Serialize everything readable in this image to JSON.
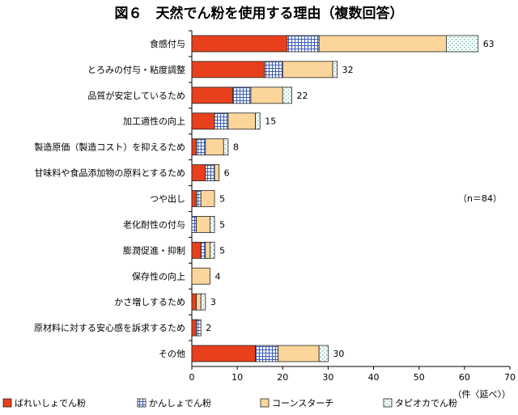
{
  "chart_data": {
    "type": "bar",
    "orientation": "horizontal",
    "stacked": true,
    "title": "図６　天然でん粉を使用する理由（複数回答）",
    "note": "（n＝84）",
    "xunit": "（件〈延べ〉）",
    "xlim": [
      0,
      70
    ],
    "xticks": [
      0,
      10,
      20,
      30,
      40,
      50,
      60,
      70
    ],
    "grid": false,
    "legend_position": "bottom",
    "categories": [
      "食感付与",
      "とろみの付与・粘度調整",
      "品質が安定しているため",
      "加工適性の向上",
      "製造原価（製造コスト）を抑えるため",
      "甘味料や食品添加物の原料とするため",
      "つや出し",
      "老化耐性の付与",
      "膨潤促進・抑制",
      "保存性の向上",
      "かさ増しするため",
      "原材料に対する安心感を訴求するため",
      "その他"
    ],
    "series": [
      {
        "name": "ばれいしょでん粉",
        "color": "#e8401c",
        "pattern": "solid",
        "values": [
          21,
          16,
          9,
          5,
          1,
          3,
          1,
          0,
          2,
          0,
          1,
          1,
          14
        ]
      },
      {
        "name": "かんしょでん粉",
        "color": "#3b5db5",
        "pattern": "grid",
        "values": [
          7,
          4,
          4,
          3,
          2,
          2,
          1,
          1,
          1,
          0,
          0,
          1,
          5
        ]
      },
      {
        "name": "コーンスターチ",
        "color": "#fcd59a",
        "pattern": "solid",
        "values": [
          28,
          11,
          7,
          6,
          4,
          1,
          3,
          3,
          1,
          4,
          1,
          0,
          9
        ]
      },
      {
        "name": "タピオカでん粉",
        "color": "#7fc8c0",
        "pattern": "dots",
        "values": [
          7,
          1,
          2,
          1,
          1,
          0,
          0,
          1,
          1,
          0,
          1,
          0,
          2
        ]
      }
    ],
    "totals": [
      63,
      32,
      22,
      15,
      8,
      6,
      5,
      5,
      5,
      4,
      3,
      2,
      30
    ]
  }
}
